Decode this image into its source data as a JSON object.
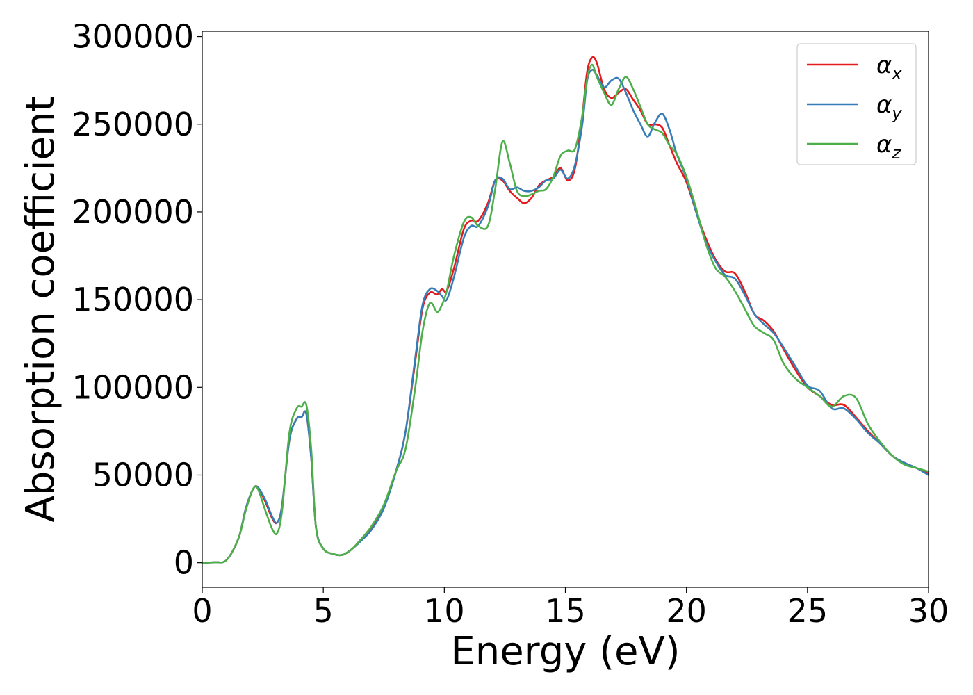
{
  "chart_data": {
    "type": "line",
    "title": "",
    "xlabel": "Energy (eV)",
    "ylabel": "Absorption coefficient",
    "xlim": [
      0,
      30
    ],
    "ylim": [
      -14000,
      303000
    ],
    "xticks": [
      0,
      5,
      10,
      15,
      20,
      25,
      30
    ],
    "xtick_labels": [
      "0",
      "5",
      "10",
      "15",
      "20",
      "25",
      "30"
    ],
    "yticks": [
      0,
      50000,
      100000,
      150000,
      200000,
      250000,
      300000
    ],
    "ytick_labels": [
      "0",
      "50000",
      "100000",
      "150000",
      "200000",
      "250000",
      "300000"
    ],
    "grid": false,
    "legend_position": "top-right",
    "series": [
      {
        "name": "α_x",
        "legend_base": "α",
        "legend_sub": "x",
        "color": "#e41a1c",
        "x": [
          0,
          0.5,
          1.0,
          1.5,
          1.8,
          2.1,
          2.3,
          2.6,
          2.9,
          3.1,
          3.3,
          3.6,
          3.9,
          4.1,
          4.3,
          4.5,
          4.7,
          5.0,
          5.4,
          5.8,
          6.2,
          6.6,
          7.0,
          7.5,
          8.0,
          8.4,
          8.8,
          9.1,
          9.4,
          9.7,
          9.9,
          10.1,
          10.4,
          10.8,
          11.1,
          11.4,
          11.8,
          12.1,
          12.4,
          12.7,
          13.0,
          13.3,
          13.6,
          13.9,
          14.2,
          14.5,
          14.8,
          15.1,
          15.4,
          15.7,
          15.9,
          16.1,
          16.3,
          16.6,
          16.9,
          17.2,
          17.5,
          17.8,
          18.1,
          18.4,
          18.7,
          19.0,
          19.3,
          19.6,
          20.0,
          20.4,
          20.8,
          21.2,
          21.6,
          22.0,
          22.4,
          22.8,
          23.2,
          23.6,
          24.0,
          24.5,
          25.0,
          25.5,
          26.0,
          26.5,
          27.0,
          27.5,
          28.0,
          28.5,
          29.0,
          29.5,
          30.0
        ],
        "values": [
          0,
          300,
          1500,
          14000,
          31000,
          42000,
          43000,
          35000,
          25000,
          23000,
          33000,
          70000,
          82000,
          83000,
          85000,
          60000,
          20000,
          8000,
          5000,
          4500,
          8000,
          14000,
          20000,
          32000,
          52000,
          75000,
          115000,
          145000,
          154000,
          153000,
          156000,
          155000,
          168000,
          190000,
          195000,
          195000,
          205000,
          218000,
          218000,
          212000,
          208000,
          205000,
          208000,
          215000,
          218000,
          220000,
          225000,
          218000,
          225000,
          255000,
          280000,
          288000,
          285000,
          270000,
          265000,
          268000,
          270000,
          264000,
          258000,
          250000,
          250000,
          248000,
          238000,
          228000,
          217000,
          200000,
          185000,
          173000,
          166000,
          165000,
          155000,
          142000,
          138000,
          132000,
          122000,
          110000,
          100000,
          95000,
          90000,
          90000,
          83000,
          75000,
          68000,
          61000,
          57000,
          54000,
          51000
        ]
      },
      {
        "name": "α_y",
        "legend_base": "α",
        "legend_sub": "y",
        "color": "#377eb8",
        "x": [
          0,
          0.5,
          1.0,
          1.5,
          1.8,
          2.1,
          2.3,
          2.6,
          2.9,
          3.1,
          3.3,
          3.6,
          3.9,
          4.1,
          4.3,
          4.5,
          4.7,
          5.0,
          5.4,
          5.8,
          6.2,
          6.6,
          7.0,
          7.5,
          8.0,
          8.4,
          8.8,
          9.1,
          9.4,
          9.7,
          9.9,
          10.1,
          10.4,
          10.8,
          11.1,
          11.4,
          11.8,
          12.1,
          12.4,
          12.7,
          13.0,
          13.3,
          13.6,
          13.9,
          14.2,
          14.5,
          14.8,
          15.1,
          15.4,
          15.7,
          15.9,
          16.1,
          16.3,
          16.6,
          16.9,
          17.2,
          17.5,
          17.8,
          18.1,
          18.4,
          18.7,
          19.0,
          19.3,
          19.6,
          20.0,
          20.4,
          20.8,
          21.2,
          21.6,
          22.0,
          22.4,
          22.8,
          23.2,
          23.6,
          24.0,
          24.5,
          25.0,
          25.5,
          26.0,
          26.5,
          27.0,
          27.5,
          28.0,
          28.5,
          29.0,
          29.5,
          30.0
        ],
        "values": [
          0,
          300,
          1500,
          14000,
          31000,
          42000,
          43000,
          36000,
          26000,
          23000,
          33000,
          70000,
          82000,
          83000,
          85000,
          60000,
          20000,
          8000,
          5000,
          4500,
          8000,
          13000,
          19000,
          31000,
          52000,
          75000,
          117000,
          147000,
          156000,
          155000,
          152000,
          150000,
          163000,
          185000,
          192000,
          192000,
          203000,
          218000,
          219000,
          213000,
          214000,
          212000,
          212000,
          214000,
          218000,
          219000,
          224000,
          219000,
          227000,
          250000,
          275000,
          281000,
          278000,
          271000,
          275000,
          276000,
          268000,
          258000,
          250000,
          243000,
          251000,
          256000,
          247000,
          233000,
          219000,
          200000,
          183000,
          172000,
          164000,
          162000,
          153000,
          142000,
          136000,
          131000,
          123000,
          112000,
          101000,
          98000,
          88000,
          88000,
          82000,
          74000,
          68000,
          61000,
          57000,
          54000,
          50000
        ]
      },
      {
        "name": "α_z",
        "legend_base": "α",
        "legend_sub": "z",
        "color": "#4daf4a",
        "x": [
          0,
          0.5,
          1.0,
          1.5,
          1.8,
          2.1,
          2.3,
          2.6,
          2.9,
          3.1,
          3.3,
          3.6,
          3.9,
          4.1,
          4.3,
          4.5,
          4.7,
          5.0,
          5.4,
          5.8,
          6.2,
          6.6,
          7.0,
          7.5,
          8.0,
          8.4,
          8.8,
          9.1,
          9.4,
          9.7,
          9.9,
          10.1,
          10.4,
          10.8,
          11.1,
          11.4,
          11.8,
          12.1,
          12.4,
          12.7,
          13.0,
          13.3,
          13.6,
          13.9,
          14.2,
          14.5,
          14.8,
          15.1,
          15.4,
          15.7,
          15.9,
          16.1,
          16.3,
          16.6,
          16.9,
          17.2,
          17.5,
          17.8,
          18.1,
          18.4,
          18.7,
          19.0,
          19.3,
          19.6,
          20.0,
          20.4,
          20.8,
          21.2,
          21.6,
          22.0,
          22.4,
          22.8,
          23.2,
          23.6,
          24.0,
          24.5,
          25.0,
          25.5,
          26.0,
          26.5,
          27.0,
          27.5,
          28.0,
          28.5,
          29.0,
          29.5,
          30.0
        ],
        "values": [
          0,
          300,
          1500,
          14000,
          30000,
          42000,
          42000,
          30000,
          19000,
          17000,
          30000,
          74000,
          88000,
          89000,
          90000,
          65000,
          20000,
          8000,
          5000,
          4500,
          8000,
          14000,
          21000,
          33000,
          52000,
          65000,
          100000,
          132000,
          148000,
          143000,
          147000,
          155000,
          175000,
          194000,
          197000,
          192000,
          192000,
          213000,
          240000,
          228000,
          212000,
          209000,
          210000,
          212000,
          213000,
          220000,
          232000,
          235000,
          236000,
          255000,
          276000,
          284000,
          277000,
          268000,
          261000,
          270000,
          277000,
          270000,
          260000,
          250000,
          247000,
          245000,
          238000,
          233000,
          220000,
          202000,
          182000,
          168000,
          163000,
          155000,
          145000,
          135000,
          131000,
          127000,
          114000,
          105000,
          100000,
          95000,
          89000,
          95000,
          94000,
          79000,
          69000,
          61000,
          56000,
          54000,
          52000
        ]
      }
    ]
  }
}
